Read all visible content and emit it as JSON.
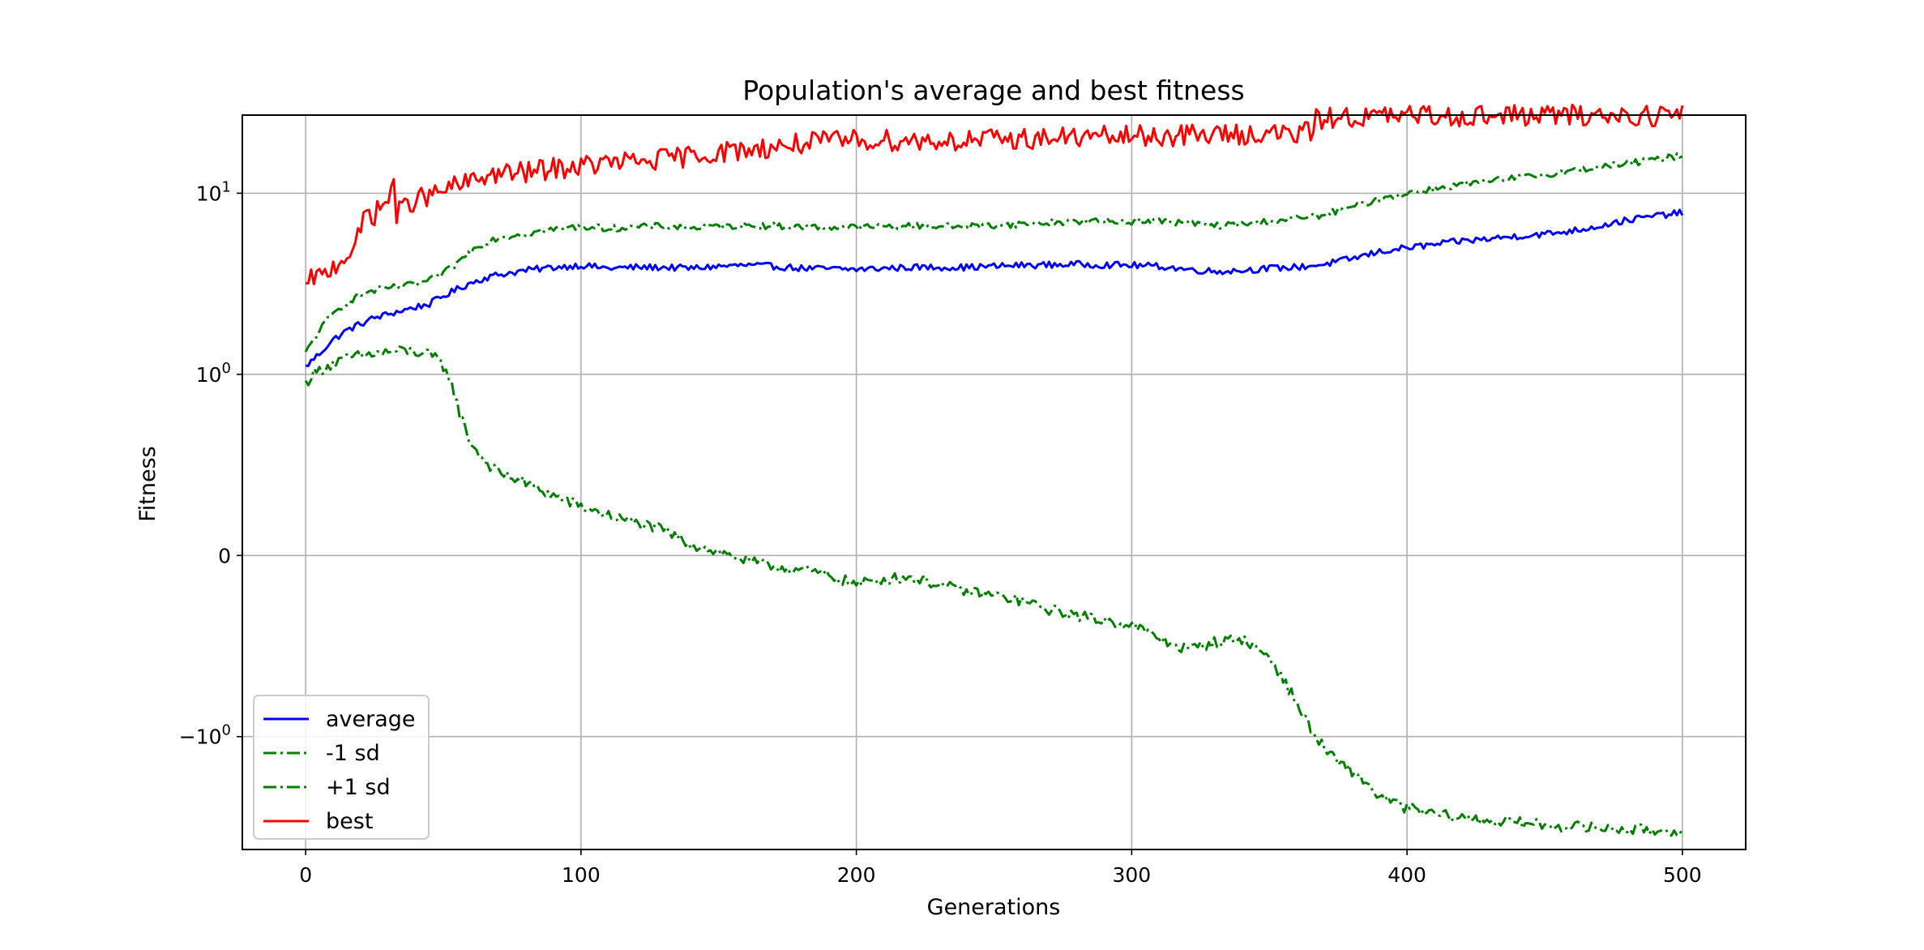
{
  "chart_data": {
    "type": "line",
    "title": "Population's average and best fitness",
    "xlabel": "Generations",
    "ylabel": "Fitness",
    "xlim": [
      -23,
      523
    ],
    "yscale": "symlog",
    "ylim": [
      -4.2,
      27
    ],
    "grid": true,
    "legend_position": "lower-left",
    "x_ticks": [
      {
        "value": 0,
        "label": "0"
      },
      {
        "value": 100,
        "label": "100"
      },
      {
        "value": 200,
        "label": "200"
      },
      {
        "value": 300,
        "label": "300"
      },
      {
        "value": 400,
        "label": "400"
      },
      {
        "value": 500,
        "label": "500"
      }
    ],
    "y_ticks": [
      {
        "value": 10,
        "base": "10",
        "exp": "1"
      },
      {
        "value": 1,
        "base": "10",
        "exp": "0"
      },
      {
        "value": 0,
        "base": "0",
        "exp": ""
      },
      {
        "value": -1,
        "base": "−10",
        "exp": "0"
      }
    ],
    "series": [
      {
        "name": "average",
        "color": "#0000ff",
        "style": "solid",
        "noise": 0.018,
        "points": [
          [
            0,
            1.1
          ],
          [
            5,
            1.3
          ],
          [
            10,
            1.55
          ],
          [
            15,
            1.75
          ],
          [
            20,
            1.9
          ],
          [
            25,
            2.05
          ],
          [
            30,
            2.15
          ],
          [
            35,
            2.25
          ],
          [
            40,
            2.35
          ],
          [
            45,
            2.45
          ],
          [
            50,
            2.7
          ],
          [
            55,
            2.95
          ],
          [
            60,
            3.2
          ],
          [
            65,
            3.4
          ],
          [
            70,
            3.55
          ],
          [
            80,
            3.75
          ],
          [
            90,
            3.9
          ],
          [
            100,
            4.0
          ],
          [
            110,
            3.85
          ],
          [
            120,
            3.9
          ],
          [
            130,
            3.9
          ],
          [
            140,
            3.85
          ],
          [
            150,
            3.95
          ],
          [
            160,
            4.0
          ],
          [
            170,
            3.95
          ],
          [
            180,
            3.85
          ],
          [
            200,
            3.8
          ],
          [
            220,
            3.9
          ],
          [
            240,
            3.9
          ],
          [
            260,
            4.0
          ],
          [
            280,
            4.05
          ],
          [
            300,
            4.0
          ],
          [
            310,
            3.95
          ],
          [
            320,
            3.8
          ],
          [
            330,
            3.7
          ],
          [
            340,
            3.75
          ],
          [
            350,
            3.85
          ],
          [
            360,
            3.9
          ],
          [
            370,
            4.05
          ],
          [
            380,
            4.35
          ],
          [
            390,
            4.75
          ],
          [
            400,
            5.0
          ],
          [
            410,
            5.2
          ],
          [
            420,
            5.45
          ],
          [
            430,
            5.6
          ],
          [
            440,
            5.8
          ],
          [
            450,
            5.95
          ],
          [
            460,
            6.2
          ],
          [
            470,
            6.6
          ],
          [
            480,
            7.1
          ],
          [
            490,
            7.5
          ],
          [
            500,
            7.8
          ]
        ]
      },
      {
        "name": "-1 sd",
        "color": "#008000",
        "style": "dashdot",
        "noise": 0.03,
        "points": [
          [
            0,
            0.95
          ],
          [
            5,
            1.05
          ],
          [
            10,
            1.15
          ],
          [
            15,
            1.22
          ],
          [
            20,
            1.27
          ],
          [
            25,
            1.3
          ],
          [
            30,
            1.33
          ],
          [
            35,
            1.35
          ],
          [
            40,
            1.33
          ],
          [
            45,
            1.28
          ],
          [
            48,
            1.2
          ],
          [
            52,
            1.0
          ],
          [
            56,
            0.78
          ],
          [
            60,
            0.62
          ],
          [
            65,
            0.52
          ],
          [
            70,
            0.46
          ],
          [
            80,
            0.4
          ],
          [
            90,
            0.33
          ],
          [
            100,
            0.27
          ],
          [
            110,
            0.22
          ],
          [
            120,
            0.18
          ],
          [
            130,
            0.14
          ],
          [
            140,
            0.06
          ],
          [
            150,
            0.02
          ],
          [
            160,
            -0.03
          ],
          [
            170,
            -0.06
          ],
          [
            180,
            -0.08
          ],
          [
            190,
            -0.11
          ],
          [
            200,
            -0.16
          ],
          [
            210,
            -0.13
          ],
          [
            220,
            -0.12
          ],
          [
            230,
            -0.16
          ],
          [
            240,
            -0.2
          ],
          [
            250,
            -0.22
          ],
          [
            260,
            -0.25
          ],
          [
            270,
            -0.3
          ],
          [
            280,
            -0.33
          ],
          [
            290,
            -0.36
          ],
          [
            300,
            -0.38
          ],
          [
            310,
            -0.46
          ],
          [
            320,
            -0.52
          ],
          [
            330,
            -0.48
          ],
          [
            340,
            -0.46
          ],
          [
            350,
            -0.56
          ],
          [
            355,
            -0.68
          ],
          [
            360,
            -0.82
          ],
          [
            365,
            -0.95
          ],
          [
            370,
            -1.15
          ],
          [
            375,
            -1.4
          ],
          [
            380,
            -1.55
          ],
          [
            385,
            -1.78
          ],
          [
            390,
            -2.15
          ],
          [
            400,
            -2.48
          ],
          [
            410,
            -2.68
          ],
          [
            420,
            -2.8
          ],
          [
            430,
            -2.9
          ],
          [
            440,
            -2.98
          ],
          [
            450,
            -3.08
          ],
          [
            460,
            -3.14
          ],
          [
            470,
            -3.2
          ],
          [
            480,
            -3.25
          ],
          [
            490,
            -3.3
          ],
          [
            500,
            -3.3
          ]
        ]
      },
      {
        "name": "+1 sd",
        "color": "#008000",
        "style": "dashdot",
        "noise": 0.018,
        "points": [
          [
            0,
            1.3
          ],
          [
            5,
            1.75
          ],
          [
            10,
            2.15
          ],
          [
            15,
            2.5
          ],
          [
            20,
            2.75
          ],
          [
            25,
            2.9
          ],
          [
            30,
            3.0
          ],
          [
            35,
            3.05
          ],
          [
            40,
            3.15
          ],
          [
            45,
            3.3
          ],
          [
            50,
            3.6
          ],
          [
            55,
            4.1
          ],
          [
            60,
            4.8
          ],
          [
            65,
            5.35
          ],
          [
            70,
            5.7
          ],
          [
            80,
            6.0
          ],
          [
            90,
            6.3
          ],
          [
            100,
            6.55
          ],
          [
            110,
            6.4
          ],
          [
            120,
            6.5
          ],
          [
            130,
            6.6
          ],
          [
            140,
            6.45
          ],
          [
            150,
            6.55
          ],
          [
            160,
            6.65
          ],
          [
            170,
            6.6
          ],
          [
            180,
            6.5
          ],
          [
            200,
            6.5
          ],
          [
            220,
            6.6
          ],
          [
            240,
            6.55
          ],
          [
            260,
            6.75
          ],
          [
            280,
            7.0
          ],
          [
            300,
            7.0
          ],
          [
            310,
            7.05
          ],
          [
            320,
            6.85
          ],
          [
            330,
            6.6
          ],
          [
            340,
            6.75
          ],
          [
            350,
            7.0
          ],
          [
            360,
            7.25
          ],
          [
            370,
            7.6
          ],
          [
            380,
            8.4
          ],
          [
            390,
            9.3
          ],
          [
            400,
            10.0
          ],
          [
            410,
            10.6
          ],
          [
            420,
            11.2
          ],
          [
            430,
            11.6
          ],
          [
            440,
            12.2
          ],
          [
            450,
            12.7
          ],
          [
            460,
            13.3
          ],
          [
            470,
            14.0
          ],
          [
            480,
            14.6
          ],
          [
            490,
            15.3
          ],
          [
            500,
            16.2
          ]
        ]
      },
      {
        "name": "best",
        "color": "#ff0000",
        "style": "solid",
        "noise": 0.06,
        "points": [
          [
            0,
            2.9
          ],
          [
            3,
            3.5
          ],
          [
            6,
            3.4
          ],
          [
            9,
            3.8
          ],
          [
            12,
            4.2
          ],
          [
            15,
            4.6
          ],
          [
            18,
            5.0
          ],
          [
            20,
            6.2
          ],
          [
            22,
            8.0
          ],
          [
            25,
            7.6
          ],
          [
            28,
            8.7
          ],
          [
            30,
            9.0
          ],
          [
            32,
            12.2
          ],
          [
            33,
            7.6
          ],
          [
            36,
            8.4
          ],
          [
            40,
            9.3
          ],
          [
            45,
            9.6
          ],
          [
            50,
            10.3
          ],
          [
            55,
            11.0
          ],
          [
            60,
            11.5
          ],
          [
            65,
            12.5
          ],
          [
            70,
            12.8
          ],
          [
            80,
            13.0
          ],
          [
            90,
            13.7
          ],
          [
            100,
            14.1
          ],
          [
            110,
            14.7
          ],
          [
            120,
            14.9
          ],
          [
            130,
            15.4
          ],
          [
            140,
            16.1
          ],
          [
            150,
            16.8
          ],
          [
            160,
            17.4
          ],
          [
            170,
            18.0
          ],
          [
            180,
            18.8
          ],
          [
            190,
            19.3
          ],
          [
            200,
            19.7
          ],
          [
            220,
            19.6
          ],
          [
            240,
            19.5
          ],
          [
            260,
            20.0
          ],
          [
            280,
            20.4
          ],
          [
            300,
            20.6
          ],
          [
            320,
            20.9
          ],
          [
            340,
            21.2
          ],
          [
            360,
            21.3
          ],
          [
            365,
            21.6
          ],
          [
            367,
            25.5
          ],
          [
            372,
            26.2
          ],
          [
            380,
            26.3
          ],
          [
            390,
            26.5
          ],
          [
            400,
            26.7
          ],
          [
            420,
            26.8
          ],
          [
            450,
            26.9
          ],
          [
            480,
            26.9
          ],
          [
            500,
            27.0
          ]
        ]
      }
    ]
  }
}
